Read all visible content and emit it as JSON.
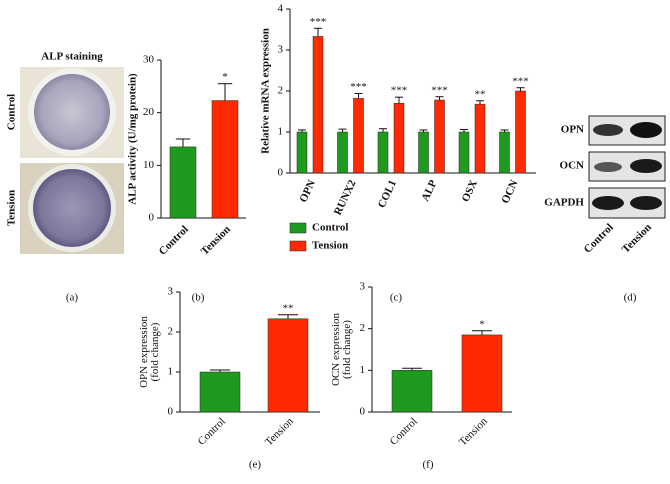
{
  "chart_data": [
    {
      "type": "bar",
      "caption": "(b)",
      "ylabel": [
        "ALP activity (U/mg protein)"
      ],
      "categories": [
        "Control",
        "Tension"
      ],
      "values": [
        13.5,
        22.3
      ],
      "errors": [
        1.5,
        3.2
      ],
      "colors": [
        "#1e9a1e",
        "#ff2a00"
      ],
      "significance": [
        null,
        "*"
      ],
      "ylim": [
        0,
        30
      ],
      "yticks": [
        0,
        10,
        20,
        30
      ]
    },
    {
      "type": "grouped-bar",
      "caption": "(c)",
      "ylabel": [
        "Relative mRNA expression"
      ],
      "categories": [
        "OPN",
        "RUNX2",
        "COL1",
        "ALP",
        "OSX",
        "OCN"
      ],
      "series": [
        {
          "name": "Control",
          "color": "#1e9a1e",
          "values": [
            1.0,
            1.0,
            1.0,
            1.0,
            1.0,
            1.0
          ],
          "errors": [
            0.05,
            0.07,
            0.08,
            0.05,
            0.06,
            0.05
          ]
        },
        {
          "name": "Tension",
          "color": "#ff2a00",
          "values": [
            3.33,
            1.82,
            1.7,
            1.78,
            1.68,
            2.0
          ],
          "errors": [
            0.2,
            0.12,
            0.15,
            0.08,
            0.08,
            0.08
          ],
          "significance": [
            "***",
            "***",
            "***",
            "***",
            "**",
            "***"
          ]
        }
      ],
      "ylim": [
        0,
        4
      ],
      "yticks": [
        0,
        1,
        2,
        3,
        4
      ],
      "legend": "below"
    },
    {
      "type": "bar",
      "caption": "(e)",
      "ylabel": [
        "OPN expression",
        "(fold change)"
      ],
      "categories": [
        "Control",
        "Tension"
      ],
      "values": [
        1.0,
        2.33
      ],
      "errors": [
        0.05,
        0.1
      ],
      "colors": [
        "#1e9a1e",
        "#ff2a00"
      ],
      "significance": [
        null,
        "**"
      ],
      "ylim": [
        0,
        3
      ],
      "yticks": [
        0,
        1,
        2,
        3
      ]
    },
    {
      "type": "bar",
      "caption": "(f)",
      "ylabel": [
        "OCN expression",
        "(fold change)"
      ],
      "categories": [
        "Control",
        "Tension"
      ],
      "values": [
        1.0,
        1.85
      ],
      "errors": [
        0.05,
        0.1
      ],
      "colors": [
        "#1e9a1e",
        "#ff2a00"
      ],
      "significance": [
        null,
        "*"
      ],
      "ylim": [
        0,
        3
      ],
      "yticks": [
        0,
        1,
        2,
        3
      ]
    }
  ],
  "staining": {
    "title": "ALP staining",
    "rows": [
      "Control",
      "Tension"
    ],
    "caption": "(a)"
  },
  "blot": {
    "rows": [
      "OPN",
      "OCN",
      "GAPDH"
    ],
    "columns": [
      "Control",
      "Tension"
    ],
    "caption": "(d)"
  }
}
